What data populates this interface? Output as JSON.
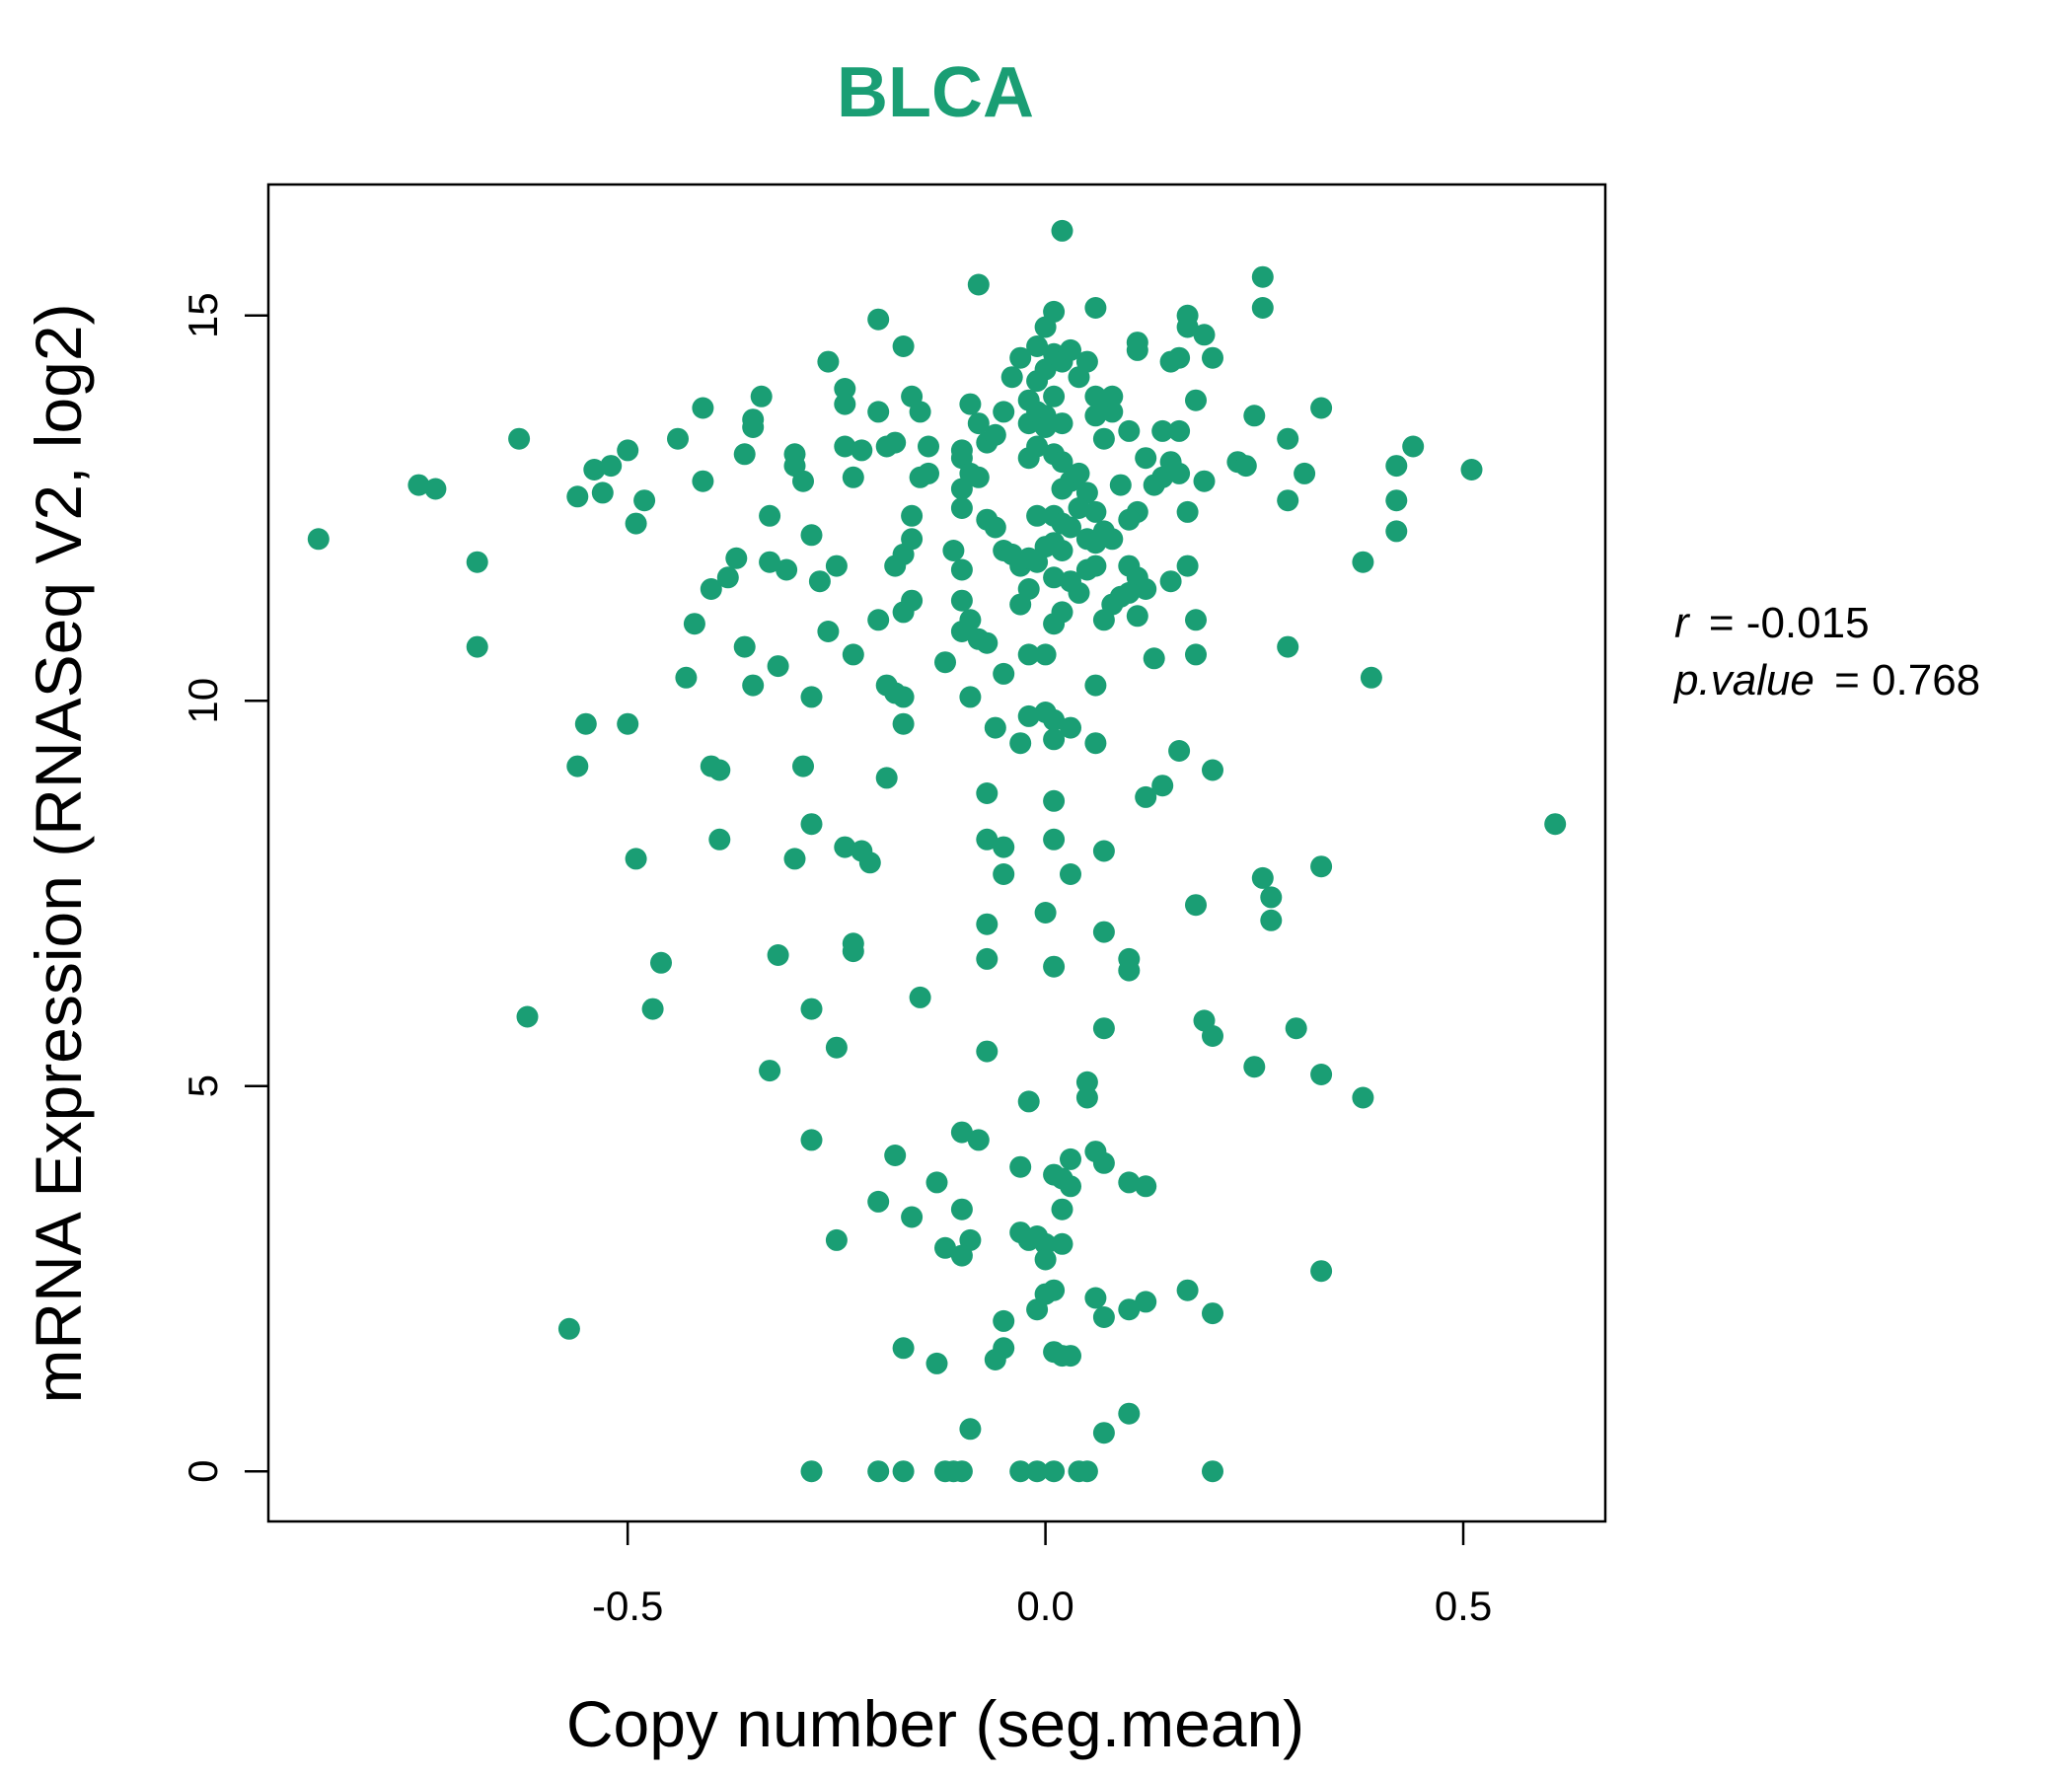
{
  "chart_data": {
    "type": "scatter",
    "title": "BLCA",
    "xlabel": "Copy number (seg.mean)",
    "ylabel": "mRNA Expression (RNASeq V2, log2)",
    "xlim": [
      -0.93,
      0.67
    ],
    "ylim": [
      -0.65,
      16.7
    ],
    "x_ticks": [
      -0.5,
      0.0,
      0.5
    ],
    "x_tick_labels": [
      "-0.5",
      "0.0",
      "0.5"
    ],
    "y_ticks": [
      0,
      5,
      10,
      15
    ],
    "y_tick_labels": [
      "0",
      "5",
      "10",
      "15"
    ],
    "grid": false,
    "color": "#1a9e74",
    "annotation": {
      "r_label": "r",
      "r_value": "= -0.015",
      "p_label": "p.value",
      "p_value": "= 0.768"
    },
    "points": [
      [
        -0.87,
        12.1
      ],
      [
        -0.75,
        12.8
      ],
      [
        -0.73,
        12.75
      ],
      [
        -0.68,
        11.8
      ],
      [
        -0.68,
        10.7
      ],
      [
        -0.63,
        13.4
      ],
      [
        -0.62,
        5.9
      ],
      [
        -0.57,
        1.85
      ],
      [
        -0.56,
        12.65
      ],
      [
        -0.56,
        9.15
      ],
      [
        -0.55,
        9.7
      ],
      [
        -0.54,
        13.0
      ],
      [
        -0.52,
        13.05
      ],
      [
        -0.53,
        12.7
      ],
      [
        -0.5,
        13.25
      ],
      [
        -0.5,
        9.7
      ],
      [
        -0.49,
        12.3
      ],
      [
        -0.48,
        12.6
      ],
      [
        -0.49,
        7.95
      ],
      [
        -0.46,
        6.6
      ],
      [
        -0.47,
        6.0
      ],
      [
        -0.44,
        13.4
      ],
      [
        -0.43,
        10.3
      ],
      [
        -0.41,
        13.8
      ],
      [
        -0.41,
        12.85
      ],
      [
        -0.4,
        11.45
      ],
      [
        -0.42,
        11.0
      ],
      [
        -0.4,
        9.15
      ],
      [
        -0.39,
        9.1
      ],
      [
        -0.39,
        8.2
      ],
      [
        -0.38,
        11.6
      ],
      [
        -0.37,
        11.85
      ],
      [
        -0.36,
        13.2
      ],
      [
        -0.35,
        13.65
      ],
      [
        -0.35,
        13.55
      ],
      [
        -0.34,
        13.95
      ],
      [
        -0.36,
        10.7
      ],
      [
        -0.35,
        10.2
      ],
      [
        -0.33,
        12.4
      ],
      [
        -0.33,
        11.8
      ],
      [
        -0.32,
        10.45
      ],
      [
        -0.31,
        11.7
      ],
      [
        -0.3,
        13.2
      ],
      [
        -0.3,
        13.05
      ],
      [
        -0.29,
        12.85
      ],
      [
        -0.32,
        6.7
      ],
      [
        -0.33,
        5.2
      ],
      [
        -0.3,
        7.95
      ],
      [
        -0.29,
        9.15
      ],
      [
        -0.28,
        8.4
      ],
      [
        -0.28,
        10.05
      ],
      [
        -0.27,
        11.55
      ],
      [
        -0.28,
        12.15
      ],
      [
        -0.26,
        14.4
      ],
      [
        -0.24,
        14.05
      ],
      [
        -0.24,
        13.85
      ],
      [
        -0.22,
        13.25
      ],
      [
        -0.24,
        13.3
      ],
      [
        -0.23,
        12.9
      ],
      [
        -0.25,
        11.75
      ],
      [
        -0.26,
        10.9
      ],
      [
        -0.23,
        10.6
      ],
      [
        -0.28,
        6.0
      ],
      [
        -0.25,
        5.5
      ],
      [
        -0.28,
        4.3
      ],
      [
        -0.25,
        3.0
      ],
      [
        -0.24,
        8.1
      ],
      [
        -0.22,
        8.05
      ],
      [
        -0.21,
        7.9
      ],
      [
        -0.23,
        6.85
      ],
      [
        -0.23,
        6.75
      ],
      [
        -0.2,
        14.95
      ],
      [
        -0.2,
        13.75
      ],
      [
        -0.19,
        13.3
      ],
      [
        -0.18,
        13.35
      ],
      [
        -0.19,
        10.2
      ],
      [
        -0.18,
        10.1
      ],
      [
        -0.17,
        10.05
      ],
      [
        -0.2,
        11.05
      ],
      [
        -0.18,
        11.75
      ],
      [
        -0.17,
        11.9
      ],
      [
        -0.16,
        12.1
      ],
      [
        -0.16,
        12.4
      ],
      [
        -0.15,
        12.9
      ],
      [
        -0.14,
        12.95
      ],
      [
        -0.17,
        14.6
      ],
      [
        -0.16,
        13.95
      ],
      [
        -0.15,
        13.75
      ],
      [
        -0.14,
        13.3
      ],
      [
        -0.16,
        11.3
      ],
      [
        -0.17,
        11.15
      ],
      [
        -0.17,
        9.7
      ],
      [
        -0.19,
        9.0
      ],
      [
        -0.15,
        6.15
      ],
      [
        -0.18,
        4.1
      ],
      [
        -0.16,
        3.3
      ],
      [
        -0.13,
        3.75
      ],
      [
        -0.2,
        3.5
      ],
      [
        -0.12,
        2.9
      ],
      [
        -0.17,
        1.6
      ],
      [
        -0.13,
        1.4
      ],
      [
        -0.12,
        10.5
      ],
      [
        -0.11,
        11.95
      ],
      [
        -0.1,
        11.7
      ],
      [
        -0.1,
        12.5
      ],
      [
        -0.1,
        12.75
      ],
      [
        -0.1,
        13.15
      ],
      [
        -0.1,
        13.25
      ],
      [
        -0.09,
        13.85
      ],
      [
        -0.08,
        13.6
      ],
      [
        -0.07,
        13.35
      ],
      [
        -0.06,
        13.45
      ],
      [
        -0.05,
        13.75
      ],
      [
        -0.04,
        14.2
      ],
      [
        -0.03,
        14.45
      ],
      [
        -0.09,
        12.95
      ],
      [
        -0.08,
        12.9
      ],
      [
        -0.07,
        12.35
      ],
      [
        -0.06,
        12.25
      ],
      [
        -0.05,
        11.95
      ],
      [
        -0.04,
        11.9
      ],
      [
        -0.03,
        11.75
      ],
      [
        -0.02,
        11.85
      ],
      [
        -0.1,
        11.3
      ],
      [
        -0.09,
        11.05
      ],
      [
        -0.1,
        10.9
      ],
      [
        -0.08,
        10.8
      ],
      [
        -0.07,
        10.75
      ],
      [
        -0.09,
        10.05
      ],
      [
        -0.05,
        10.35
      ],
      [
        -0.06,
        9.65
      ],
      [
        -0.07,
        8.8
      ],
      [
        -0.05,
        8.1
      ],
      [
        -0.07,
        8.2
      ],
      [
        -0.05,
        7.75
      ],
      [
        -0.07,
        7.1
      ],
      [
        -0.07,
        6.65
      ],
      [
        -0.07,
        5.45
      ],
      [
        -0.1,
        4.4
      ],
      [
        -0.08,
        4.3
      ],
      [
        -0.1,
        3.4
      ],
      [
        -0.09,
        3.0
      ],
      [
        -0.1,
        2.8
      ],
      [
        -0.05,
        1.95
      ],
      [
        -0.05,
        1.6
      ],
      [
        -0.06,
        1.45
      ],
      [
        -0.09,
        0.55
      ],
      [
        -0.08,
        15.4
      ],
      [
        -0.02,
        13.9
      ],
      [
        -0.01,
        14.15
      ],
      [
        0.0,
        14.3
      ],
      [
        0.01,
        14.5
      ],
      [
        0.02,
        14.4
      ],
      [
        0.0,
        14.85
      ],
      [
        0.01,
        15.05
      ],
      [
        -0.01,
        14.6
      ],
      [
        0.03,
        14.55
      ],
      [
        0.04,
        14.2
      ],
      [
        0.05,
        14.4
      ],
      [
        -0.02,
        13.6
      ],
      [
        -0.01,
        13.75
      ],
      [
        0.0,
        13.7
      ],
      [
        0.01,
        13.95
      ],
      [
        0.02,
        13.6
      ],
      [
        0.0,
        13.55
      ],
      [
        -0.02,
        13.15
      ],
      [
        -0.01,
        13.3
      ],
      [
        0.01,
        13.2
      ],
      [
        0.02,
        13.1
      ],
      [
        0.03,
        12.85
      ],
      [
        0.02,
        12.75
      ],
      [
        0.04,
        12.95
      ],
      [
        0.05,
        12.7
      ],
      [
        0.01,
        12.4
      ],
      [
        0.02,
        12.3
      ],
      [
        0.03,
        12.25
      ],
      [
        0.01,
        12.05
      ],
      [
        0.02,
        11.95
      ],
      [
        0.0,
        12.0
      ],
      [
        -0.01,
        12.4
      ],
      [
        0.04,
        12.5
      ],
      [
        0.05,
        12.1
      ],
      [
        0.06,
        12.45
      ],
      [
        0.01,
        11.6
      ],
      [
        0.03,
        11.55
      ],
      [
        0.04,
        11.4
      ],
      [
        0.02,
        11.15
      ],
      [
        0.01,
        11.0
      ],
      [
        0.05,
        11.7
      ],
      [
        -0.01,
        11.8
      ],
      [
        -0.02,
        11.45
      ],
      [
        -0.03,
        11.25
      ],
      [
        -0.02,
        10.6
      ],
      [
        0.0,
        10.6
      ],
      [
        0.0,
        9.85
      ],
      [
        0.01,
        9.75
      ],
      [
        -0.02,
        9.8
      ],
      [
        0.03,
        9.65
      ],
      [
        -0.03,
        9.45
      ],
      [
        0.01,
        9.5
      ],
      [
        0.01,
        8.7
      ],
      [
        0.01,
        8.2
      ],
      [
        0.03,
        7.75
      ],
      [
        0.0,
        7.25
      ],
      [
        0.01,
        6.55
      ],
      [
        -0.02,
        4.8
      ],
      [
        0.05,
        5.05
      ],
      [
        0.05,
        4.85
      ],
      [
        0.03,
        4.05
      ],
      [
        0.02,
        3.8
      ],
      [
        0.03,
        3.7
      ],
      [
        -0.03,
        3.95
      ],
      [
        0.02,
        3.4
      ],
      [
        0.01,
        3.85
      ],
      [
        -0.03,
        3.1
      ],
      [
        -0.02,
        3.0
      ],
      [
        0.0,
        2.95
      ],
      [
        0.02,
        2.95
      ],
      [
        0.0,
        2.75
      ],
      [
        -0.01,
        3.05
      ],
      [
        0.0,
        2.3
      ],
      [
        0.01,
        2.35
      ],
      [
        -0.01,
        2.1
      ],
      [
        0.02,
        1.5
      ],
      [
        0.03,
        1.5
      ],
      [
        0.01,
        1.55
      ],
      [
        0.06,
        15.1
      ],
      [
        0.06,
        13.95
      ],
      [
        0.07,
        13.85
      ],
      [
        0.08,
        13.75
      ],
      [
        0.08,
        13.95
      ],
      [
        0.07,
        13.4
      ],
      [
        0.06,
        13.7
      ],
      [
        0.1,
        13.5
      ],
      [
        0.12,
        13.15
      ],
      [
        0.13,
        12.8
      ],
      [
        0.14,
        12.9
      ],
      [
        0.15,
        13.1
      ],
      [
        0.11,
        12.45
      ],
      [
        0.1,
        12.35
      ],
      [
        0.09,
        12.8
      ],
      [
        0.07,
        12.2
      ],
      [
        0.06,
        12.05
      ],
      [
        0.08,
        12.1
      ],
      [
        0.06,
        11.75
      ],
      [
        0.1,
        11.75
      ],
      [
        0.11,
        11.6
      ],
      [
        0.12,
        11.45
      ],
      [
        0.09,
        11.35
      ],
      [
        0.1,
        11.4
      ],
      [
        0.11,
        11.1
      ],
      [
        0.08,
        11.25
      ],
      [
        0.07,
        11.05
      ],
      [
        0.06,
        10.2
      ],
      [
        0.06,
        9.45
      ],
      [
        0.13,
        10.55
      ],
      [
        0.12,
        8.75
      ],
      [
        0.14,
        8.9
      ],
      [
        0.07,
        8.05
      ],
      [
        0.07,
        7.0
      ],
      [
        0.1,
        6.65
      ],
      [
        0.1,
        6.5
      ],
      [
        0.07,
        5.75
      ],
      [
        0.06,
        4.15
      ],
      [
        0.07,
        4.0
      ],
      [
        0.1,
        3.75
      ],
      [
        0.12,
        3.7
      ],
      [
        0.06,
        2.25
      ],
      [
        0.07,
        2.0
      ],
      [
        0.1,
        2.1
      ],
      [
        0.12,
        2.2
      ],
      [
        0.07,
        0.5
      ],
      [
        0.1,
        0.75
      ],
      [
        0.11,
        14.55
      ],
      [
        0.11,
        14.65
      ],
      [
        0.16,
        14.45
      ],
      [
        0.15,
        14.4
      ],
      [
        0.17,
        14.85
      ],
      [
        0.17,
        15.0
      ],
      [
        0.19,
        14.75
      ],
      [
        0.2,
        14.45
      ],
      [
        0.14,
        13.5
      ],
      [
        0.16,
        13.5
      ],
      [
        0.18,
        13.9
      ],
      [
        0.19,
        12.85
      ],
      [
        0.16,
        12.95
      ],
      [
        0.17,
        12.45
      ],
      [
        0.17,
        11.75
      ],
      [
        0.15,
        11.55
      ],
      [
        0.18,
        11.05
      ],
      [
        0.18,
        10.6
      ],
      [
        0.16,
        9.35
      ],
      [
        0.2,
        9.1
      ],
      [
        0.18,
        7.35
      ],
      [
        0.19,
        5.85
      ],
      [
        0.2,
        5.65
      ],
      [
        0.2,
        2.05
      ],
      [
        0.17,
        2.35
      ],
      [
        0.23,
        13.1
      ],
      [
        0.24,
        13.05
      ],
      [
        0.25,
        13.7
      ],
      [
        0.26,
        15.5
      ],
      [
        0.26,
        15.1
      ],
      [
        0.29,
        13.4
      ],
      [
        0.31,
        12.95
      ],
      [
        0.29,
        12.6
      ],
      [
        0.33,
        13.8
      ],
      [
        0.29,
        10.7
      ],
      [
        0.26,
        7.7
      ],
      [
        0.27,
        7.45
      ],
      [
        0.27,
        7.15
      ],
      [
        0.25,
        5.25
      ],
      [
        0.3,
        5.75
      ],
      [
        0.33,
        5.15
      ],
      [
        0.33,
        7.85
      ],
      [
        0.33,
        2.6
      ],
      [
        0.38,
        11.8
      ],
      [
        0.39,
        10.3
      ],
      [
        0.38,
        4.85
      ],
      [
        0.42,
        13.05
      ],
      [
        0.42,
        12.6
      ],
      [
        0.42,
        12.2
      ],
      [
        0.44,
        13.3
      ],
      [
        0.51,
        13.0
      ],
      [
        0.61,
        8.4
      ],
      [
        0.02,
        16.1
      ],
      [
        -0.28,
        0.0
      ],
      [
        -0.2,
        0.0
      ],
      [
        -0.17,
        0.0
      ],
      [
        -0.12,
        0.0
      ],
      [
        -0.11,
        0.0
      ],
      [
        -0.1,
        0.0
      ],
      [
        -0.03,
        0.0
      ],
      [
        -0.01,
        0.0
      ],
      [
        0.01,
        0.0
      ],
      [
        0.04,
        0.0
      ],
      [
        0.05,
        0.0
      ],
      [
        0.2,
        0.0
      ]
    ]
  }
}
